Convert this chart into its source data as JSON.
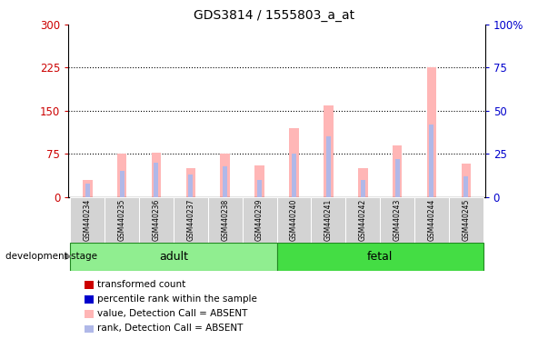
{
  "title": "GDS3814 / 1555803_a_at",
  "samples": [
    "GSM440234",
    "GSM440235",
    "GSM440236",
    "GSM440237",
    "GSM440238",
    "GSM440239",
    "GSM440240",
    "GSM440241",
    "GSM440242",
    "GSM440243",
    "GSM440244",
    "GSM440245"
  ],
  "groups": [
    "adult",
    "adult",
    "adult",
    "adult",
    "adult",
    "adult",
    "fetal",
    "fetal",
    "fetal",
    "fetal",
    "fetal",
    "fetal"
  ],
  "absent_value": [
    30,
    75,
    78,
    50,
    75,
    55,
    120,
    160,
    50,
    90,
    225,
    58
  ],
  "absent_rank": [
    8,
    15,
    20,
    13,
    18,
    10,
    25,
    35,
    10,
    22,
    42,
    12
  ],
  "ylim_left": [
    0,
    300
  ],
  "ylim_right": [
    0,
    100
  ],
  "yticks_left": [
    0,
    75,
    150,
    225,
    300
  ],
  "yticks_right": [
    0,
    25,
    50,
    75,
    100
  ],
  "color_absent_value": "#ffb6b6",
  "color_absent_rank": "#b0b8e8",
  "color_present_value": "#cc0000",
  "color_present_rank": "#0000cc",
  "ylabel_left_color": "#cc0000",
  "ylabel_right_color": "#0000cc",
  "dev_stage_label": "development stage",
  "adult_color": "#90ee90",
  "fetal_color": "#44dd44",
  "group_border_color": "#228822",
  "sample_box_color": "#d3d3d3",
  "legend_items": [
    {
      "label": "transformed count",
      "color": "#cc0000"
    },
    {
      "label": "percentile rank within the sample",
      "color": "#0000cc"
    },
    {
      "label": "value, Detection Call = ABSENT",
      "color": "#ffb6b6"
    },
    {
      "label": "rank, Detection Call = ABSENT",
      "color": "#b0b8e8"
    }
  ]
}
